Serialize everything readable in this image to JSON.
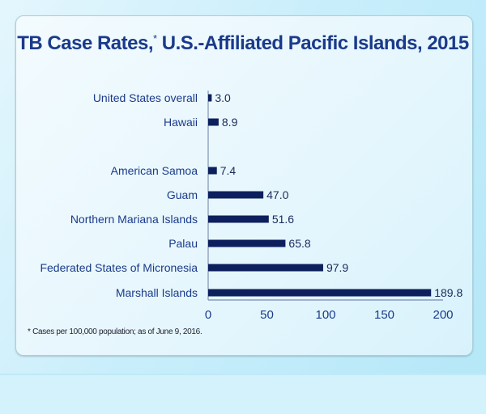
{
  "chart_data": {
    "type": "bar",
    "orientation": "horizontal",
    "title": "TB Case Rates,",
    "title_marker": "*",
    "title_rest": "U.S.-Affiliated Pacific Islands, 2015",
    "categories": [
      "United States overall",
      "Hawaii",
      "American Samoa",
      "Guam",
      "Northern Mariana Islands",
      "Palau",
      "Federated States of Micronesia",
      "Marshall Islands"
    ],
    "values": [
      3.0,
      8.9,
      7.4,
      47.0,
      51.6,
      65.8,
      97.9,
      189.8
    ],
    "value_labels": [
      "3.0",
      "8.9",
      "7.4",
      "47.0",
      "51.6",
      "65.8",
      "97.9",
      "189.8"
    ],
    "xlim": [
      0,
      200
    ],
    "xticks": [
      "0",
      "50",
      "100",
      "150",
      "200"
    ],
    "grid": false,
    "bar_color": "#0d1f5c",
    "footnote": "* Cases per 100,000 population; as of June 9, 2016."
  }
}
